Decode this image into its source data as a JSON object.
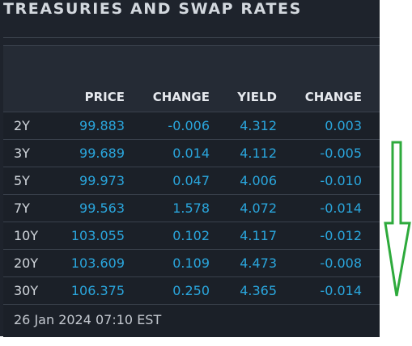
{
  "title": "TREASURIES AND SWAP RATES",
  "columns": [
    "PRICE",
    "CHANGE",
    "YIELD",
    "CHANGE"
  ],
  "rows": [
    {
      "term": "2Y",
      "price": "99.883",
      "price_change": "-0.006",
      "yield": "4.312",
      "yield_change": "0.003"
    },
    {
      "term": "3Y",
      "price": "99.689",
      "price_change": "0.014",
      "yield": "4.112",
      "yield_change": "-0.005"
    },
    {
      "term": "5Y",
      "price": "99.973",
      "price_change": "0.047",
      "yield": "4.006",
      "yield_change": "-0.010"
    },
    {
      "term": "7Y",
      "price": "99.563",
      "price_change": "1.578",
      "yield": "4.072",
      "yield_change": "-0.014"
    },
    {
      "term": "10Y",
      "price": "103.055",
      "price_change": "0.102",
      "yield": "4.117",
      "yield_change": "-0.012"
    },
    {
      "term": "20Y",
      "price": "103.609",
      "price_change": "0.109",
      "yield": "4.473",
      "yield_change": "-0.008"
    },
    {
      "term": "30Y",
      "price": "106.375",
      "price_change": "0.250",
      "yield": "4.365",
      "yield_change": "-0.014"
    }
  ],
  "timestamp": "26 Jan 2024 07:10 EST",
  "colors": {
    "background": "#1e232c",
    "value_text": "#2aa6dd",
    "header_text": "#e6e9ee",
    "annotation_arrow": "#2eaa3c"
  },
  "annotation": {
    "icon": "down-arrow-icon"
  }
}
